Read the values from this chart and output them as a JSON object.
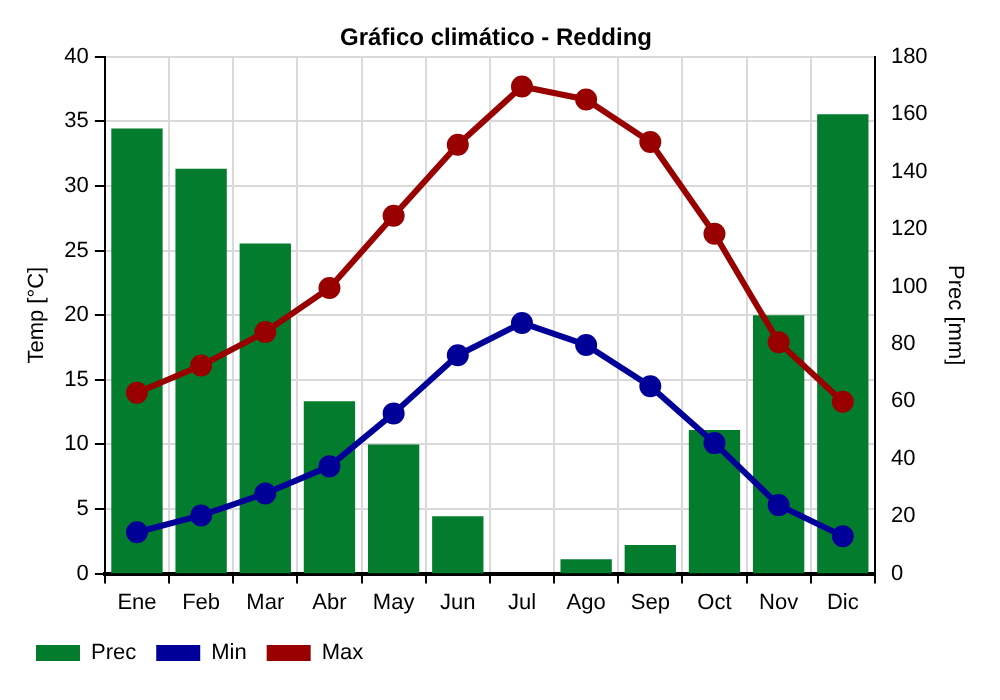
{
  "chart_data": {
    "type": "bar",
    "title": "Gráfico climático - Redding",
    "ylabel": "Temp [°C]",
    "y2label": "Prec [mm]",
    "categories": [
      "Ene",
      "Feb",
      "Mar",
      "Abr",
      "May",
      "Jun",
      "Jul",
      "Ago",
      "Sep",
      "Oct",
      "Nov",
      "Dic"
    ],
    "series": [
      {
        "name": "Prec",
        "axis": "y2",
        "color": "#037c2e",
        "values": [
          155,
          141,
          115,
          60,
          45,
          20,
          0,
          5,
          10,
          50,
          90,
          160
        ]
      },
      {
        "name": "Min",
        "type": "line",
        "color": "#000099",
        "values": [
          3.2,
          4.5,
          6.2,
          8.3,
          12.4,
          16.9,
          19.4,
          17.7,
          14.5,
          10.1,
          5.3,
          2.9
        ]
      },
      {
        "name": "Max",
        "type": "line",
        "color": "#990000",
        "values": [
          14,
          16.1,
          18.7,
          22.1,
          27.7,
          33.2,
          37.7,
          36.7,
          33.4,
          26.3,
          17.9,
          13.3
        ]
      }
    ],
    "ylim": [
      0,
      40
    ],
    "yticks": [
      0,
      5,
      10,
      15,
      20,
      25,
      30,
      35,
      40
    ],
    "y2lim": [
      0,
      180
    ],
    "y2ticks": [
      0,
      20,
      40,
      60,
      80,
      100,
      120,
      140,
      160,
      180
    ],
    "grid": true,
    "legend": "bottom left",
    "marker": "circle",
    "line_style": "solid"
  }
}
